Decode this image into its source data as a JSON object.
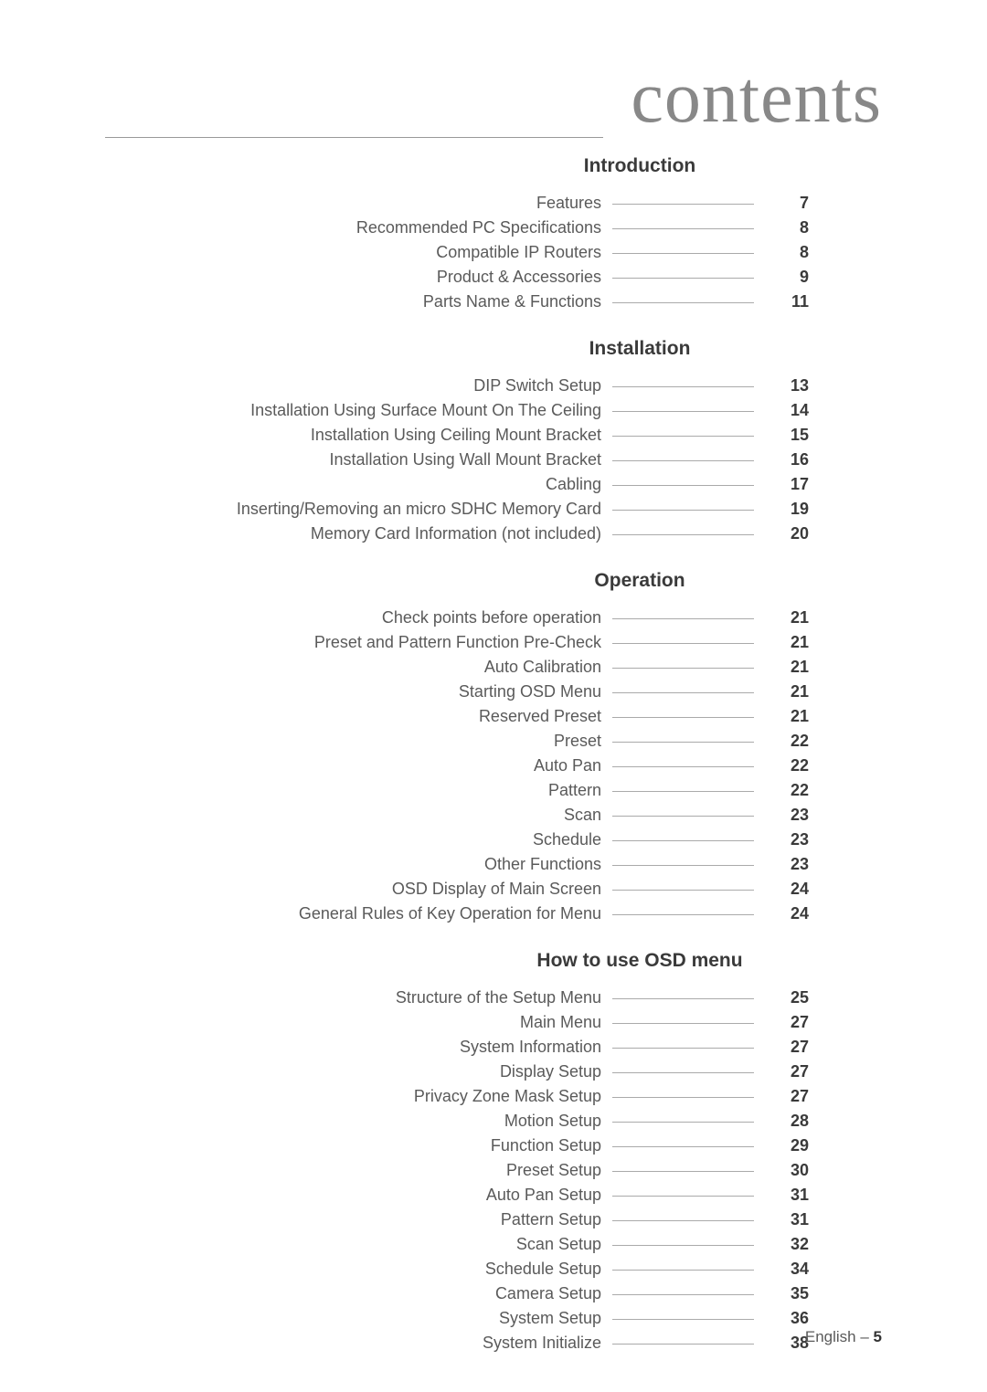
{
  "page_title": "contents",
  "footer": {
    "lang": "English –",
    "page": "5"
  },
  "sections": [
    {
      "title": "Introduction",
      "items": [
        {
          "label": "Features",
          "page": "7"
        },
        {
          "label": "Recommended PC Specifications",
          "page": "8"
        },
        {
          "label": "Compatible IP Routers",
          "page": "8"
        },
        {
          "label": "Product & Accessories",
          "page": "9"
        },
        {
          "label": "Parts Name & Functions",
          "page": "11"
        }
      ]
    },
    {
      "title": "Installation",
      "items": [
        {
          "label": "DIP Switch Setup",
          "page": "13"
        },
        {
          "label": "Installation Using Surface Mount On The Ceiling",
          "page": "14"
        },
        {
          "label": "Installation Using Ceiling Mount Bracket",
          "page": "15"
        },
        {
          "label": "Installation Using Wall Mount Bracket",
          "page": "16"
        },
        {
          "label": "Cabling",
          "page": "17"
        },
        {
          "label": "Inserting/Removing an micro SDHC Memory Card",
          "page": "19"
        },
        {
          "label": "Memory Card Information (not included)",
          "page": "20"
        }
      ]
    },
    {
      "title": "Operation",
      "items": [
        {
          "label": "Check points before operation",
          "page": "21"
        },
        {
          "label": "Preset and Pattern Function Pre-Check",
          "page": "21"
        },
        {
          "label": "Auto Calibration",
          "page": "21"
        },
        {
          "label": "Starting OSD Menu",
          "page": "21"
        },
        {
          "label": "Reserved Preset",
          "page": "21"
        },
        {
          "label": "Preset",
          "page": "22"
        },
        {
          "label": "Auto Pan",
          "page": "22"
        },
        {
          "label": "Pattern",
          "page": "22"
        },
        {
          "label": "Scan",
          "page": "23"
        },
        {
          "label": "Schedule",
          "page": "23"
        },
        {
          "label": "Other Functions",
          "page": "23"
        },
        {
          "label": "OSD Display of Main Screen",
          "page": "24"
        },
        {
          "label": "General Rules of Key Operation for Menu",
          "page": "24"
        }
      ]
    },
    {
      "title": "How to use OSD menu",
      "items": [
        {
          "label": "Structure of the Setup Menu",
          "page": "25"
        },
        {
          "label": "Main Menu",
          "page": "27"
        },
        {
          "label": "System Information",
          "page": "27"
        },
        {
          "label": "Display Setup",
          "page": "27"
        },
        {
          "label": "Privacy Zone Mask Setup",
          "page": "27"
        },
        {
          "label": "Motion Setup",
          "page": "28"
        },
        {
          "label": "Function Setup",
          "page": "29"
        },
        {
          "label": "Preset Setup",
          "page": "30"
        },
        {
          "label": "Auto Pan Setup",
          "page": "31"
        },
        {
          "label": "Pattern Setup",
          "page": "31"
        },
        {
          "label": "Scan Setup",
          "page": "32"
        },
        {
          "label": "Schedule Setup",
          "page": "34"
        },
        {
          "label": "Camera Setup",
          "page": "35"
        },
        {
          "label": "System Setup",
          "page": "36"
        },
        {
          "label": "System Initialize",
          "page": "38"
        }
      ]
    }
  ]
}
